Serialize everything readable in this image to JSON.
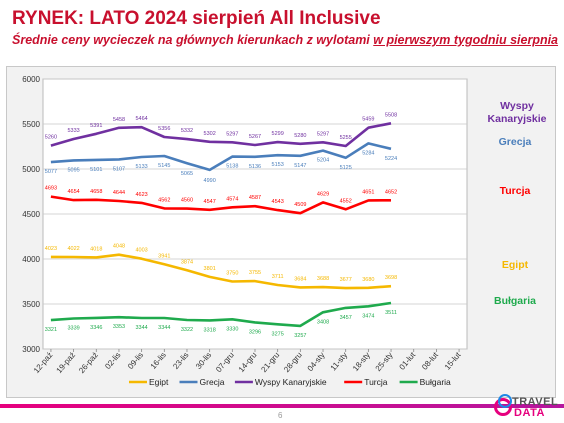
{
  "header": {
    "title": "RYNEK: LATO 2024 sierpień All Inclusive",
    "subtitle_part1": "Średnie ceny wycieczek na głównych kierunkach z wylotami ",
    "subtitle_part2": "w pierwszym tygodniu sierpnia"
  },
  "footer": {
    "page_number": "6",
    "logo_line1": "TRAVEL",
    "logo_line2": "DATA"
  },
  "chart_data": {
    "type": "line",
    "ylim": [
      3000,
      6000
    ],
    "yticks": [
      3000,
      3500,
      4000,
      4500,
      5000,
      5500,
      6000
    ],
    "grid": true,
    "legend_position": "bottom",
    "categories": [
      "12-paź",
      "19-paź",
      "26-paź",
      "02-lis",
      "09-lis",
      "16-lis",
      "23-lis",
      "30-lis",
      "07-gru",
      "14-gru",
      "21-gru",
      "28-gru",
      "04-sty",
      "11-sty",
      "18-sty",
      "25-sty",
      "01-lut",
      "08-lut",
      "15-lut"
    ],
    "series": [
      {
        "name": "Egipt",
        "color": "#f5b800",
        "label_color": "#f5b800",
        "label": "Egipt",
        "values": [
          4023,
          4022,
          4018,
          4048,
          4003,
          3941,
          3874,
          3801,
          3750,
          3755,
          3711,
          3684,
          3688,
          3677,
          3680,
          3698,
          null,
          null,
          null
        ]
      },
      {
        "name": "Grecja",
        "color": "#4a7ebb",
        "label_color": "#4a7ebb",
        "label": "Grecja",
        "values": [
          5077,
          5095,
          5101,
          5107,
          5133,
          5145,
          5065,
          4990,
          5138,
          5136,
          5153,
          5147,
          5204,
          5125,
          5284,
          5224,
          null,
          null,
          null
        ]
      },
      {
        "name": "Wyspy Kanaryjskie",
        "color": "#7030a0",
        "label_color": "#7030a0",
        "label": "Wyspy Kanaryjskie",
        "values": [
          5260,
          5333,
          5391,
          5458,
          5464,
          5356,
          5332,
          5302,
          5297,
          5267,
          5299,
          5280,
          5297,
          5255,
          5459,
          5508,
          null,
          null,
          null
        ]
      },
      {
        "name": "Turcja",
        "color": "#ff0000",
        "label_color": "#ff0000",
        "label": "Turcja",
        "values": [
          4693,
          4654,
          4658,
          4644,
          4623,
          4562,
          4560,
          4547,
          4574,
          4587,
          4543,
          4509,
          4629,
          4552,
          4651,
          4652,
          null,
          null,
          null
        ]
      },
      {
        "name": "Bułgaria",
        "color": "#1faa4d",
        "label_color": "#1faa4d",
        "label": "Bułgaria",
        "values": [
          3321,
          3339,
          3346,
          3353,
          3344,
          3344,
          3322,
          3318,
          3330,
          3296,
          3275,
          3257,
          3408,
          3457,
          3474,
          3511,
          null,
          null,
          null
        ]
      }
    ]
  }
}
